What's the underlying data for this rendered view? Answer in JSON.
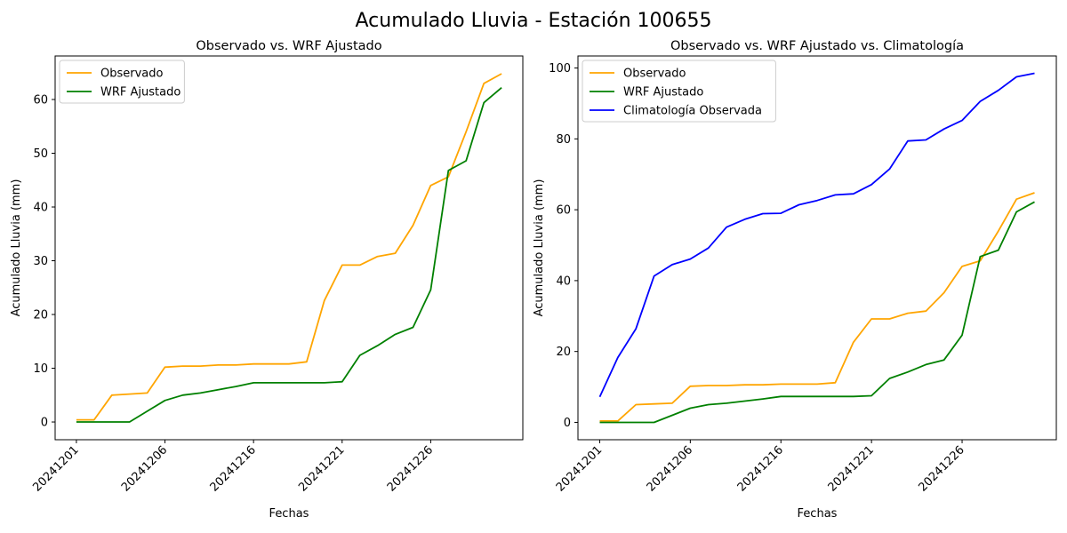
{
  "suptitle": "Acumulado Lluvia - Estación 100655",
  "colors": {
    "observado": "#FFA500",
    "wrf": "#008000",
    "clim": "#0000FF"
  },
  "chart_data": [
    {
      "type": "line",
      "title": "Observado vs. WRF Ajustado",
      "xlabel": "Fechas",
      "ylabel": "Acumulado Lluvia (mm)",
      "x": [
        1,
        2,
        3,
        4,
        5,
        6,
        7,
        8,
        9,
        10,
        11,
        12,
        13,
        14,
        15,
        16,
        17,
        18,
        19,
        20,
        21,
        22,
        23,
        24,
        25
      ],
      "xticks": [
        1,
        6,
        11,
        16,
        21
      ],
      "xticklabels": [
        "20241201",
        "20241206",
        "20241216",
        "20241221",
        "20241226"
      ],
      "ylim": [
        -3.3,
        68.1
      ],
      "yticks": [
        0,
        10,
        20,
        30,
        40,
        50,
        60
      ],
      "legend_loc": "upper-left",
      "series": [
        {
          "name": "Observado",
          "color": "#FFA500",
          "values": [
            0.4,
            0.4,
            5.0,
            5.2,
            5.4,
            10.2,
            10.4,
            10.4,
            10.6,
            10.6,
            10.8,
            10.8,
            10.8,
            11.2,
            22.6,
            29.2,
            29.2,
            30.8,
            31.4,
            36.6,
            44.0,
            45.6,
            54.0,
            63.0,
            64.8
          ]
        },
        {
          "name": "WRF Ajustado",
          "color": "#008000",
          "values": [
            0,
            0,
            0,
            0,
            2.0,
            4.0,
            5.0,
            5.4,
            6.0,
            6.6,
            7.3,
            7.3,
            7.3,
            7.3,
            7.3,
            7.5,
            12.4,
            14.2,
            16.3,
            17.6,
            24.6,
            46.8,
            48.6,
            59.4,
            62.2
          ]
        }
      ]
    },
    {
      "type": "line",
      "title": "Observado vs. WRF Ajustado vs. Climatología",
      "xlabel": "Fechas",
      "ylabel": "Acumulado Lluvia (mm)",
      "x": [
        1,
        2,
        3,
        4,
        5,
        6,
        7,
        8,
        9,
        10,
        11,
        12,
        13,
        14,
        15,
        16,
        17,
        18,
        19,
        20,
        21,
        22,
        23,
        24,
        25
      ],
      "xticks": [
        1,
        6,
        11,
        16,
        21
      ],
      "xticklabels": [
        "20241201",
        "20241206",
        "20241216",
        "20241221",
        "20241226"
      ],
      "ylim": [
        -4.9,
        103.4
      ],
      "yticks": [
        0,
        20,
        40,
        60,
        80,
        100
      ],
      "legend_loc": "upper-left",
      "series": [
        {
          "name": "Observado",
          "color": "#FFA500",
          "values": [
            0.4,
            0.4,
            5.0,
            5.2,
            5.4,
            10.2,
            10.4,
            10.4,
            10.6,
            10.6,
            10.8,
            10.8,
            10.8,
            11.2,
            22.6,
            29.2,
            29.2,
            30.8,
            31.4,
            36.6,
            44.0,
            45.6,
            54.0,
            63.0,
            64.8
          ]
        },
        {
          "name": "WRF Ajustado",
          "color": "#008000",
          "values": [
            0,
            0,
            0,
            0,
            2.0,
            4.0,
            5.0,
            5.4,
            6.0,
            6.6,
            7.3,
            7.3,
            7.3,
            7.3,
            7.3,
            7.5,
            12.4,
            14.2,
            16.3,
            17.6,
            24.6,
            46.8,
            48.6,
            59.4,
            62.2
          ]
        },
        {
          "name": "Climatología Observada",
          "color": "#0000FF",
          "values": [
            7.2,
            18.3,
            26.4,
            41.3,
            44.5,
            46.1,
            49.2,
            55.1,
            57.3,
            58.9,
            59.0,
            61.4,
            62.6,
            64.2,
            64.5,
            67.1,
            71.5,
            79.4,
            79.7,
            82.8,
            85.2,
            90.6,
            93.7,
            97.5,
            98.5
          ]
        }
      ]
    }
  ]
}
